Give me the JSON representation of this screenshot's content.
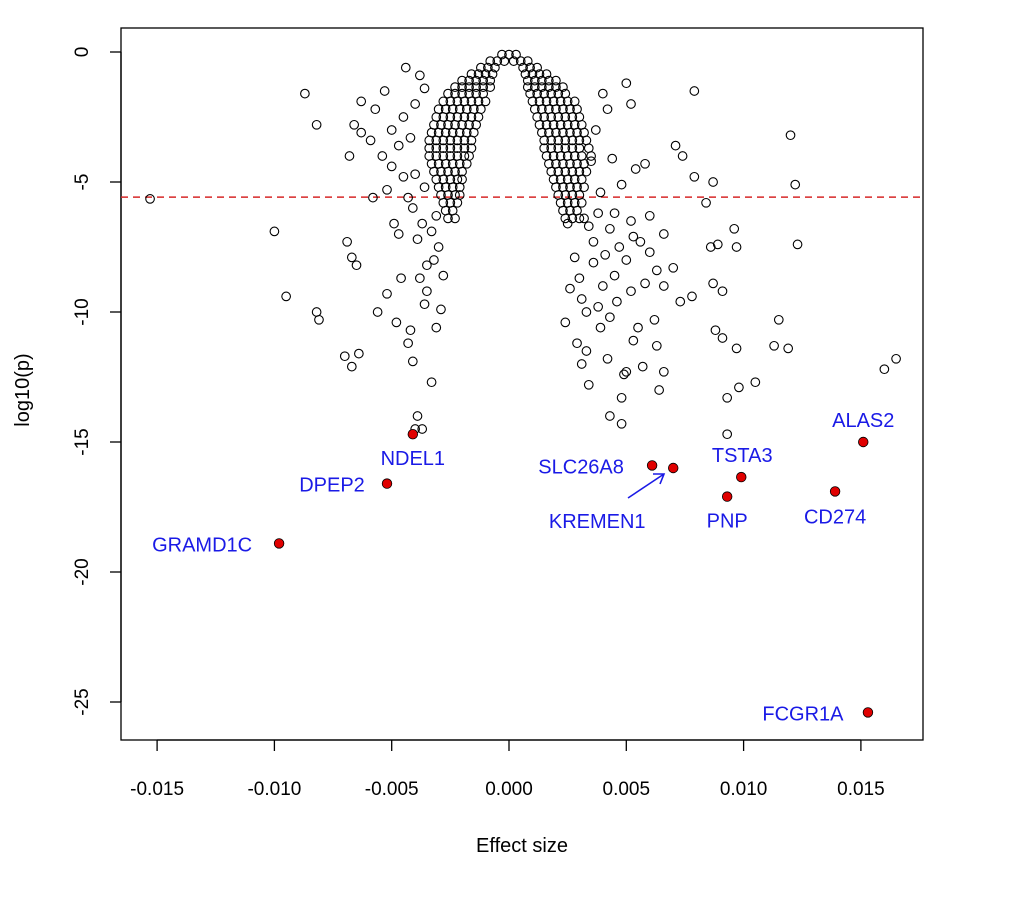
{
  "chart_data": {
    "type": "scatter",
    "title": "",
    "xlabel": "Effect size",
    "ylabel": "log10(p)",
    "xlim": [
      -0.0165,
      0.0178
    ],
    "ylim": [
      -26.6,
      1.0
    ],
    "x_ticks": [
      "-0.015",
      "-0.010",
      "-0.005",
      "0.000",
      "0.005",
      "0.010",
      "0.015"
    ],
    "x_tick_values": [
      -0.015,
      -0.01,
      -0.005,
      0.0,
      0.005,
      0.01,
      0.015
    ],
    "y_ticks": [
      "0",
      "-5",
      "-10",
      "-15",
      "-20",
      "-25"
    ],
    "y_tick_values": [
      0,
      -5,
      -10,
      -15,
      -20,
      -25
    ],
    "grid": false,
    "threshold": {
      "y": -5.58,
      "color": "#d62728",
      "style": "dashed"
    },
    "colors": {
      "point_stroke": "#000000",
      "highlight_fill": "#e00000",
      "label": "#1a1ae6"
    },
    "core_rows": [
      {
        "y": -0.1,
        "x": [
          -0.0003,
          0.0,
          0.0003
        ]
      },
      {
        "y": -0.35,
        "x": [
          -0.0008,
          -0.0005,
          -0.0002,
          0.0002,
          0.0005,
          0.0008
        ]
      },
      {
        "y": -0.6,
        "x": [
          -0.0012,
          -0.0009,
          -0.0006,
          0.0006,
          0.0009,
          0.0012
        ]
      },
      {
        "y": -0.85,
        "x": [
          -0.0016,
          -0.0013,
          -0.001,
          -0.0007,
          0.0007,
          0.001,
          0.0013,
          0.0016
        ]
      },
      {
        "y": -1.1,
        "x": [
          -0.002,
          -0.0017,
          -0.0014,
          -0.0011,
          -0.0008,
          0.0008,
          0.0011,
          0.0014,
          0.0017,
          0.002
        ]
      },
      {
        "y": -1.35,
        "x": [
          -0.0023,
          -0.002,
          -0.0017,
          -0.0014,
          -0.0011,
          -0.0008,
          0.0008,
          0.0011,
          0.0014,
          0.0017,
          0.002,
          0.0023
        ]
      },
      {
        "y": -1.6,
        "x": [
          -0.0026,
          -0.0023,
          -0.002,
          -0.0017,
          -0.0014,
          -0.0011,
          0.0009,
          0.0012,
          0.0015,
          0.0018,
          0.0021,
          0.0024
        ]
      },
      {
        "y": -1.9,
        "x": [
          -0.0028,
          -0.0025,
          -0.0022,
          -0.0019,
          -0.0016,
          -0.0013,
          -0.001,
          0.001,
          0.0013,
          0.0016,
          0.0019,
          0.0022,
          0.0025,
          0.0028
        ]
      },
      {
        "y": -2.2,
        "x": [
          -0.003,
          -0.0027,
          -0.0024,
          -0.0021,
          -0.0018,
          -0.0015,
          -0.0012,
          0.0011,
          0.0014,
          0.0017,
          0.002,
          0.0023,
          0.0026,
          0.0029
        ]
      },
      {
        "y": -2.5,
        "x": [
          -0.0031,
          -0.0028,
          -0.0025,
          -0.0022,
          -0.0019,
          -0.0016,
          -0.0013,
          0.0012,
          0.0015,
          0.0018,
          0.0021,
          0.0024,
          0.0027,
          0.003
        ]
      },
      {
        "y": -2.8,
        "x": [
          -0.0032,
          -0.0029,
          -0.0026,
          -0.0023,
          -0.002,
          -0.0017,
          -0.0014,
          0.0013,
          0.0016,
          0.0019,
          0.0022,
          0.0025,
          0.0028,
          0.0031
        ]
      },
      {
        "y": -3.1,
        "x": [
          -0.0033,
          -0.003,
          -0.0027,
          -0.0024,
          -0.0021,
          -0.0018,
          -0.0015,
          0.0014,
          0.0017,
          0.002,
          0.0023,
          0.0026,
          0.0029,
          0.0032
        ]
      },
      {
        "y": -3.4,
        "x": [
          -0.0034,
          -0.0031,
          -0.0028,
          -0.0025,
          -0.0022,
          -0.0019,
          -0.0016,
          0.0015,
          0.0018,
          0.0021,
          0.0024,
          0.0027,
          0.003,
          0.0033
        ]
      },
      {
        "y": -3.7,
        "x": [
          -0.0034,
          -0.0031,
          -0.0028,
          -0.0025,
          -0.0022,
          -0.0019,
          -0.0016,
          0.0015,
          0.0018,
          0.0021,
          0.0024,
          0.0027,
          0.003,
          0.0034
        ]
      },
      {
        "y": -4.0,
        "x": [
          -0.0034,
          -0.0031,
          -0.0028,
          -0.0025,
          -0.0022,
          -0.0019,
          -0.0017,
          0.0016,
          0.0019,
          0.0022,
          0.0025,
          0.0028,
          0.0031,
          0.0035
        ]
      },
      {
        "y": -4.3,
        "x": [
          -0.0033,
          -0.003,
          -0.0027,
          -0.0024,
          -0.0021,
          -0.0018,
          0.0017,
          0.002,
          0.0023,
          0.0026,
          0.0029,
          0.0032
        ]
      },
      {
        "y": -4.6,
        "x": [
          -0.0032,
          -0.0029,
          -0.0026,
          -0.0023,
          -0.002,
          0.0018,
          0.0021,
          0.0024,
          0.0027,
          0.003,
          0.0033
        ]
      },
      {
        "y": -4.9,
        "x": [
          -0.0031,
          -0.0028,
          -0.0025,
          -0.0022,
          -0.002,
          0.0019,
          0.0022,
          0.0025,
          0.0028,
          0.0031
        ]
      },
      {
        "y": -5.2,
        "x": [
          -0.003,
          -0.0027,
          -0.0024,
          -0.0021,
          0.002,
          0.0023,
          0.0026,
          0.0029,
          0.0032
        ]
      },
      {
        "y": -5.5,
        "x": [
          -0.0029,
          -0.0026,
          -0.0023,
          -0.0021,
          0.0021,
          0.0024,
          0.0027,
          0.003
        ]
      },
      {
        "y": -5.8,
        "x": [
          -0.0028,
          -0.0025,
          -0.0022,
          0.0022,
          0.0025,
          0.0028,
          0.0031
        ]
      },
      {
        "y": -6.1,
        "x": [
          -0.0027,
          -0.0024,
          0.0023,
          0.0026,
          0.0029
        ]
      },
      {
        "y": -6.4,
        "x": [
          -0.0026,
          -0.0023,
          0.0024,
          0.0027,
          0.003
        ]
      }
    ],
    "points": [
      [
        -0.0153,
        -5.65
      ],
      [
        -0.01,
        -6.9
      ],
      [
        -0.0087,
        -1.6
      ],
      [
        -0.0082,
        -2.8
      ],
      [
        -0.0095,
        -9.4
      ],
      [
        -0.0082,
        -10.0
      ],
      [
        -0.0081,
        -10.3
      ],
      [
        -0.0069,
        -7.3
      ],
      [
        -0.0067,
        -7.9
      ],
      [
        -0.0065,
        -8.2
      ],
      [
        -0.007,
        -11.7
      ],
      [
        -0.0067,
        -12.1
      ],
      [
        -0.0064,
        -11.6
      ],
      [
        -0.0068,
        -4.0
      ],
      [
        -0.0066,
        -2.8
      ],
      [
        -0.0063,
        -3.1
      ],
      [
        -0.0063,
        -1.9
      ],
      [
        -0.0059,
        -3.4
      ],
      [
        -0.0058,
        -5.6
      ],
      [
        -0.0057,
        -2.2
      ],
      [
        -0.0053,
        -1.5
      ],
      [
        -0.0054,
        -4.0
      ],
      [
        -0.0052,
        -5.3
      ],
      [
        -0.0049,
        -6.6
      ],
      [
        -0.0047,
        -7.0
      ],
      [
        -0.0056,
        -10.0
      ],
      [
        -0.0052,
        -9.3
      ],
      [
        -0.0046,
        -8.7
      ],
      [
        -0.0048,
        -10.4
      ],
      [
        -0.0043,
        -11.2
      ],
      [
        -0.0041,
        -11.9
      ],
      [
        -0.0042,
        -10.7
      ],
      [
        -0.0039,
        -14.0
      ],
      [
        -0.004,
        -14.5
      ],
      [
        -0.0037,
        -14.5
      ],
      [
        -0.0045,
        -2.5
      ],
      [
        -0.0044,
        -0.6
      ],
      [
        -0.0047,
        -3.6
      ],
      [
        -0.005,
        -4.4
      ],
      [
        -0.005,
        -3.0
      ],
      [
        -0.0033,
        -12.7
      ],
      [
        -0.0036,
        -9.7
      ],
      [
        -0.0031,
        -10.6
      ],
      [
        -0.0035,
        -8.2
      ],
      [
        -0.0038,
        -8.7
      ],
      [
        -0.0041,
        -6.0
      ],
      [
        -0.0039,
        -7.2
      ],
      [
        -0.0037,
        -6.6
      ],
      [
        -0.0035,
        -9.2
      ],
      [
        -0.0032,
        -8.0
      ],
      [
        -0.003,
        -7.5
      ],
      [
        -0.0028,
        -8.6
      ],
      [
        -0.0033,
        -6.9
      ],
      [
        -0.0036,
        -5.2
      ],
      [
        -0.004,
        -4.7
      ],
      [
        -0.0043,
        -5.6
      ],
      [
        -0.0038,
        -0.9
      ],
      [
        -0.0036,
        -1.4
      ],
      [
        -0.004,
        -2.0
      ],
      [
        -0.0042,
        -3.3
      ],
      [
        -0.0045,
        -4.8
      ],
      [
        -0.0029,
        -9.9
      ],
      [
        -0.0031,
        -6.3
      ],
      [
        0.0123,
        -7.4
      ],
      [
        0.012,
        -3.2
      ],
      [
        0.0122,
        -5.1
      ],
      [
        0.016,
        -12.2
      ],
      [
        0.0165,
        -11.8
      ],
      [
        0.0119,
        -11.4
      ],
      [
        0.0115,
        -10.3
      ],
      [
        0.0113,
        -11.3
      ],
      [
        0.0105,
        -12.7
      ],
      [
        0.0098,
        -12.9
      ],
      [
        0.0093,
        -13.3
      ],
      [
        0.0093,
        -14.7
      ],
      [
        0.0091,
        -11.0
      ],
      [
        0.0088,
        -10.7
      ],
      [
        0.0097,
        -11.4
      ],
      [
        0.0097,
        -7.5
      ],
      [
        0.0096,
        -6.8
      ],
      [
        0.0091,
        -9.2
      ],
      [
        0.0087,
        -8.9
      ],
      [
        0.0086,
        -7.5
      ],
      [
        0.0089,
        -7.4
      ],
      [
        0.0087,
        -5.0
      ],
      [
        0.0079,
        -1.5
      ],
      [
        0.0079,
        -4.8
      ],
      [
        0.0074,
        -4.0
      ],
      [
        0.0071,
        -3.6
      ],
      [
        0.0084,
        -5.8
      ],
      [
        0.0078,
        -9.4
      ],
      [
        0.0073,
        -9.6
      ],
      [
        0.007,
        -8.3
      ],
      [
        0.0066,
        -9.0
      ],
      [
        0.0062,
        -10.3
      ],
      [
        0.0055,
        -10.6
      ],
      [
        0.0053,
        -11.1
      ],
      [
        0.005,
        -12.3
      ],
      [
        0.0049,
        -12.4
      ],
      [
        0.0043,
        -14.0
      ],
      [
        0.0048,
        -14.3
      ],
      [
        0.0048,
        -13.3
      ],
      [
        0.0034,
        -12.8
      ],
      [
        0.0031,
        -12.0
      ],
      [
        0.0029,
        -11.2
      ],
      [
        0.0033,
        -11.5
      ],
      [
        0.0042,
        -11.8
      ],
      [
        0.0063,
        -11.3
      ],
      [
        0.0066,
        -12.3
      ],
      [
        0.0064,
        -13.0
      ],
      [
        0.0057,
        -12.1
      ],
      [
        0.0024,
        -10.4
      ],
      [
        0.005,
        -1.2
      ],
      [
        0.0052,
        -2.0
      ],
      [
        0.0042,
        -2.2
      ],
      [
        0.004,
        -1.6
      ],
      [
        0.0037,
        -3.0
      ],
      [
        0.0044,
        -4.1
      ],
      [
        0.0054,
        -4.5
      ],
      [
        0.0058,
        -4.3
      ],
      [
        0.006,
        -6.3
      ],
      [
        0.006,
        -7.7
      ],
      [
        0.0066,
        -7.0
      ],
      [
        0.0063,
        -8.4
      ],
      [
        0.0058,
        -8.9
      ],
      [
        0.005,
        -8.0
      ],
      [
        0.0045,
        -8.6
      ],
      [
        0.004,
        -9.0
      ],
      [
        0.0036,
        -8.1
      ],
      [
        0.0031,
        -9.5
      ],
      [
        0.0038,
        -9.8
      ],
      [
        0.0043,
        -10.2
      ],
      [
        0.0032,
        -6.4
      ],
      [
        0.0045,
        -6.2
      ],
      [
        0.0052,
        -6.5
      ],
      [
        0.0056,
        -7.3
      ],
      [
        0.0053,
        -7.1
      ],
      [
        0.0047,
        -7.5
      ],
      [
        0.0041,
        -7.8
      ],
      [
        0.0034,
        -6.7
      ],
      [
        0.0025,
        -6.6
      ],
      [
        0.0028,
        -7.9
      ],
      [
        0.0038,
        -6.2
      ],
      [
        0.0048,
        -5.1
      ],
      [
        0.0035,
        -4.2
      ],
      [
        0.0039,
        -5.4
      ],
      [
        0.0043,
        -6.8
      ],
      [
        0.0036,
        -7.3
      ],
      [
        0.003,
        -8.7
      ],
      [
        0.0026,
        -9.1
      ],
      [
        0.0033,
        -10.0
      ],
      [
        0.0039,
        -10.6
      ],
      [
        0.0046,
        -9.6
      ],
      [
        0.0052,
        -9.2
      ]
    ],
    "highlighted": [
      {
        "label": "GRAMD1C",
        "x": -0.0098,
        "y": -18.9
      },
      {
        "label": "DPEP2",
        "x": -0.0052,
        "y": -16.6
      },
      {
        "label": "NDEL1",
        "x": -0.0041,
        "y": -14.7
      },
      {
        "label": "SLC26A8",
        "x": 0.0061,
        "y": -15.9
      },
      {
        "label": "KREMEN1",
        "x": 0.007,
        "y": -16.0
      },
      {
        "label": "TSTA3",
        "x": 0.0099,
        "y": -16.35
      },
      {
        "label": "PNP",
        "x": 0.0093,
        "y": -17.1
      },
      {
        "label": "ALAS2",
        "x": 0.0151,
        "y": -15.0
      },
      {
        "label": "CD274",
        "x": 0.0139,
        "y": -16.9
      },
      {
        "label": "FCGR1A",
        "x": 0.0153,
        "y": -25.4
      }
    ]
  }
}
